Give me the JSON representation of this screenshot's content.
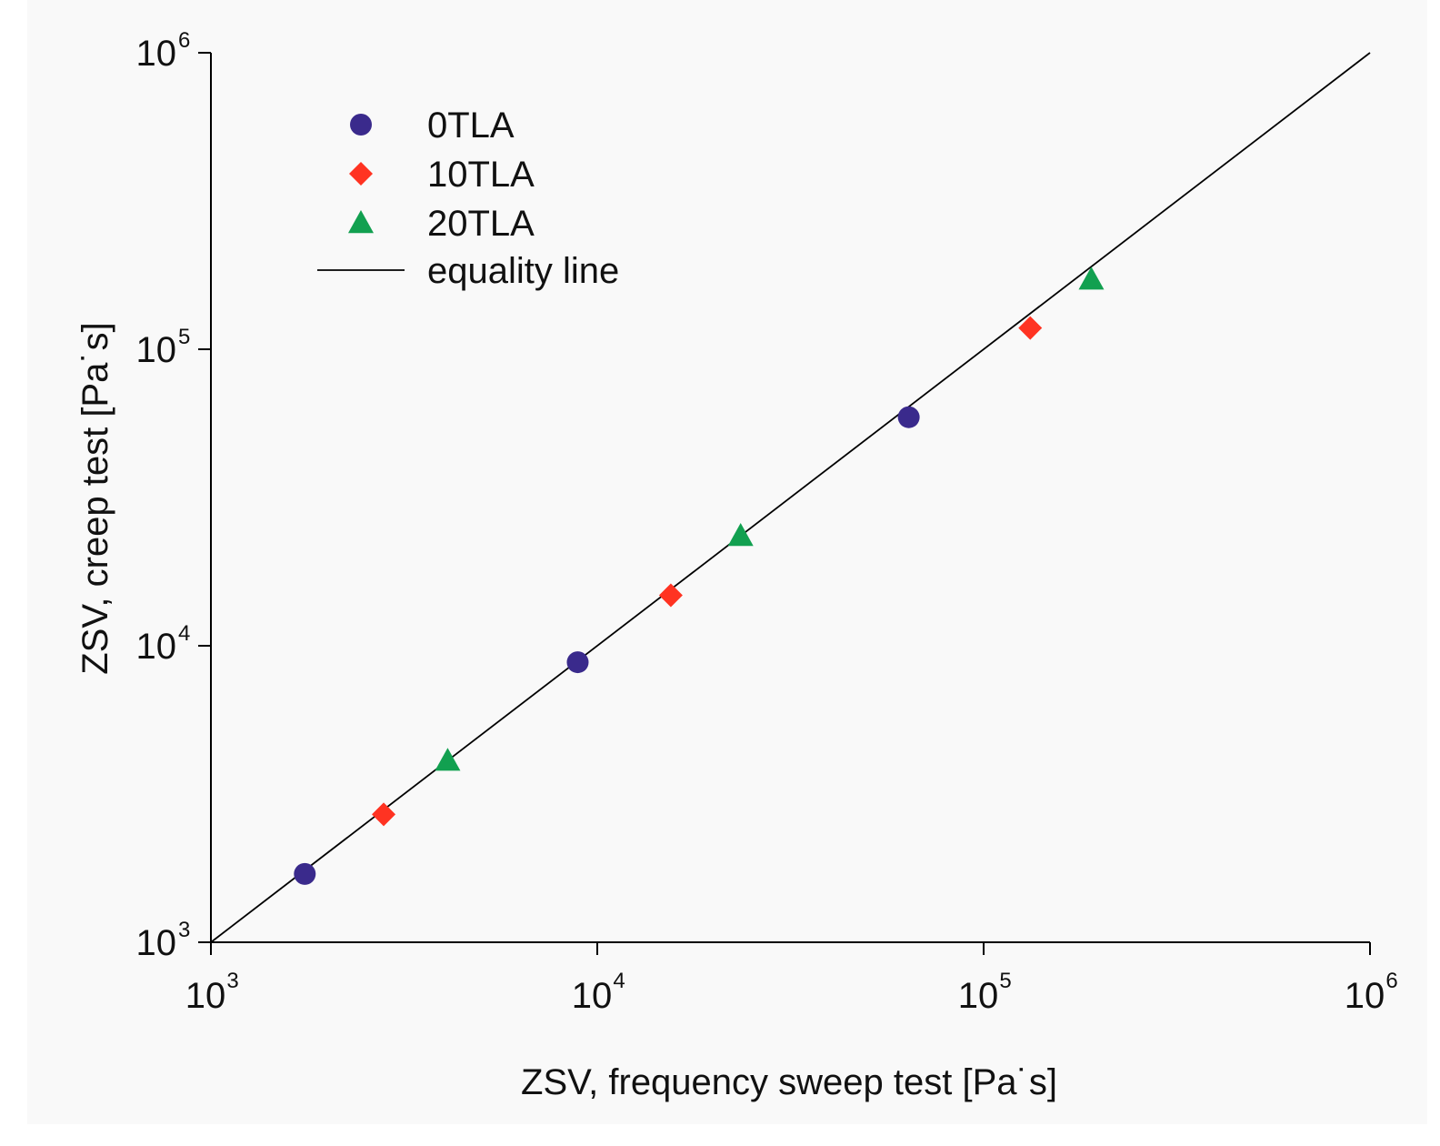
{
  "chart_data": {
    "type": "scatter",
    "title": "",
    "xlabel": "ZSV, frequency sweep test [Pa˙s]",
    "ylabel": "ZSV, creep test [Pa˙s]",
    "xscale": "log",
    "yscale": "log",
    "xlim": [
      1000,
      1000000
    ],
    "ylim": [
      1000,
      1000000
    ],
    "grid": false,
    "legend_position": "top-left",
    "ticks": [
      {
        "base": "10",
        "exp": "3",
        "value": 1000
      },
      {
        "base": "10",
        "exp": "4",
        "value": 10000
      },
      {
        "base": "10",
        "exp": "5",
        "value": 100000
      },
      {
        "base": "10",
        "exp": "6",
        "value": 1000000
      }
    ],
    "series": [
      {
        "name": "0TLA",
        "marker": "circle",
        "color": "#3a2a8c",
        "points": [
          {
            "x": 1750,
            "y": 1700
          },
          {
            "x": 8900,
            "y": 8800
          },
          {
            "x": 64000,
            "y": 59000
          }
        ]
      },
      {
        "name": "10TLA",
        "marker": "diamond",
        "color": "#ff3322",
        "points": [
          {
            "x": 2800,
            "y": 2700
          },
          {
            "x": 15500,
            "y": 14800
          },
          {
            "x": 132000,
            "y": 118000
          }
        ]
      },
      {
        "name": "20TLA",
        "marker": "triangle",
        "color": "#12a050",
        "points": [
          {
            "x": 4100,
            "y": 4100
          },
          {
            "x": 23500,
            "y": 23500
          },
          {
            "x": 190000,
            "y": 172000
          }
        ]
      }
    ],
    "reference_line": {
      "name": "equality line",
      "color": "#000000",
      "from": [
        1000,
        1000
      ],
      "to": [
        1000000,
        1000000
      ]
    }
  }
}
